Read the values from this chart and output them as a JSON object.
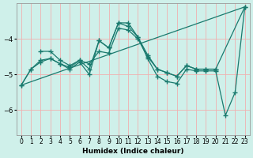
{
  "xlabel": "Humidex (Indice chaleur)",
  "bg_color": "#cff0ea",
  "grid_color": "#f0b0b0",
  "line_color": "#1a7a6e",
  "xlim": [
    -0.5,
    23.5
  ],
  "ylim": [
    -6.7,
    -3.0
  ],
  "yticks": [
    -6,
    -5,
    -4
  ],
  "xticks": [
    0,
    1,
    2,
    3,
    4,
    5,
    6,
    7,
    8,
    9,
    10,
    11,
    12,
    13,
    14,
    15,
    16,
    17,
    18,
    19,
    20,
    21,
    22,
    23
  ],
  "series": [
    {
      "x": [
        0,
        1,
        2,
        3,
        4,
        5,
        6,
        7,
        8,
        9,
        10,
        11,
        12,
        13,
        14,
        15,
        16,
        17,
        18,
        19,
        20,
        21,
        22,
        23
      ],
      "y": [
        -5.3,
        -4.85,
        -4.65,
        -4.55,
        -4.7,
        -4.85,
        -4.65,
        -5.0,
        -4.05,
        -4.25,
        -3.55,
        -3.55,
        -3.95,
        -4.55,
        -5.05,
        -5.2,
        -5.25,
        -4.85,
        -4.9,
        -4.9,
        -4.9,
        -6.15,
        -5.5,
        -3.1
      ],
      "marker": true
    },
    {
      "x": [
        0,
        1,
        2,
        3,
        4,
        5,
        6,
        7,
        8,
        9,
        10,
        11,
        12,
        13,
        14,
        15,
        16,
        17,
        18,
        19,
        20,
        23
      ],
      "y": [
        -5.3,
        -4.85,
        -4.6,
        -4.55,
        -4.7,
        -4.8,
        -4.6,
        -4.7,
        -4.35,
        -4.4,
        -3.7,
        -3.75,
        -4.0,
        -4.5,
        -4.85,
        -4.95,
        -5.05,
        -4.75,
        -4.85,
        -4.85,
        -4.85,
        -3.1
      ],
      "marker": true
    },
    {
      "x": [
        2,
        3,
        4,
        5,
        6,
        7,
        8,
        9,
        10,
        11,
        12,
        13,
        14,
        15,
        16,
        17,
        18,
        19,
        20
      ],
      "y": [
        -4.35,
        -4.35,
        -4.6,
        -4.75,
        -4.6,
        -4.85,
        -4.05,
        -4.25,
        -3.55,
        -3.65,
        -3.95,
        -4.45,
        -4.85,
        -4.95,
        -5.05,
        -4.75,
        -4.85,
        -4.85,
        -4.85
      ],
      "marker": true
    },
    {
      "x": [
        0,
        23
      ],
      "y": [
        -5.3,
        -3.1
      ],
      "marker": false
    }
  ]
}
